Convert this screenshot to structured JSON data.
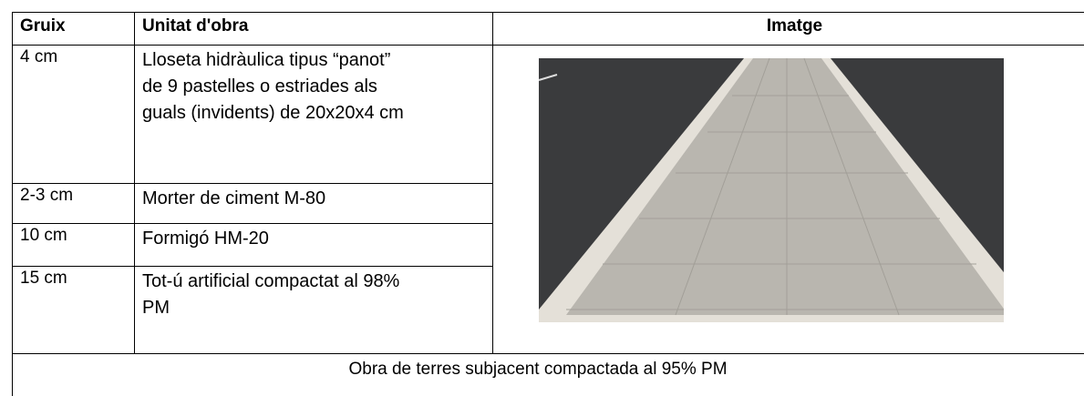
{
  "table": {
    "headers": [
      "Gruix",
      "Unitat d'obra",
      "Imatge"
    ],
    "rows": [
      [
        "4 cm",
        "Lloseta hidràulica tipus “panot” de 9 pastelles o estriades als guals (invidents) de 20x20x4 cm"
      ],
      [
        "2-3 cm",
        "Morter de ciment M-80"
      ],
      [
        "10 cm",
        "Formigó HM-20"
      ],
      [
        "15 cm",
        "Tot-ú artificial compactat al 98% PM"
      ]
    ],
    "footer": "Obra de terres subjacent compactada al 95% PM"
  }
}
